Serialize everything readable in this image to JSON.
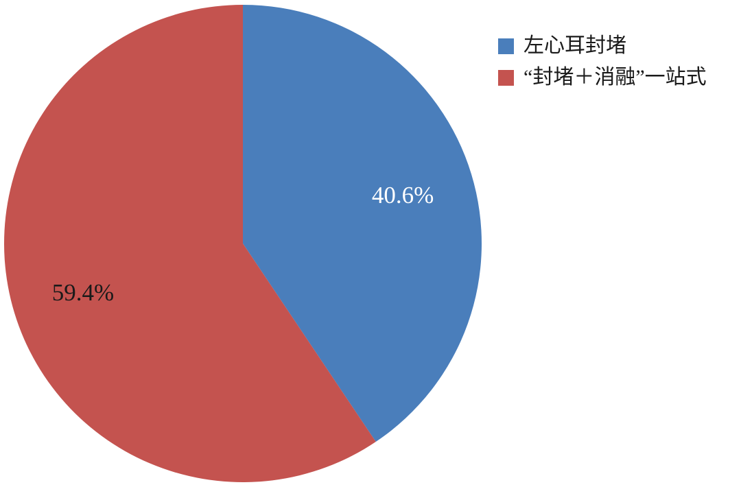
{
  "chart_data": {
    "type": "pie",
    "title": "",
    "start_angle": "top",
    "direction": "clockwise",
    "legend_position": "top-right",
    "background": "#FFFFFF",
    "slices": [
      {
        "label": "左心耳封堵",
        "value": 40.6,
        "display": "40.6%",
        "color": "#4A7EBB",
        "label_color": "#FFFFFF"
      },
      {
        "label": "“封堵＋消融”一站式",
        "value": 59.4,
        "display": "59.4%",
        "color": "#C4534F",
        "label_color": "#1A1A1A"
      }
    ]
  }
}
